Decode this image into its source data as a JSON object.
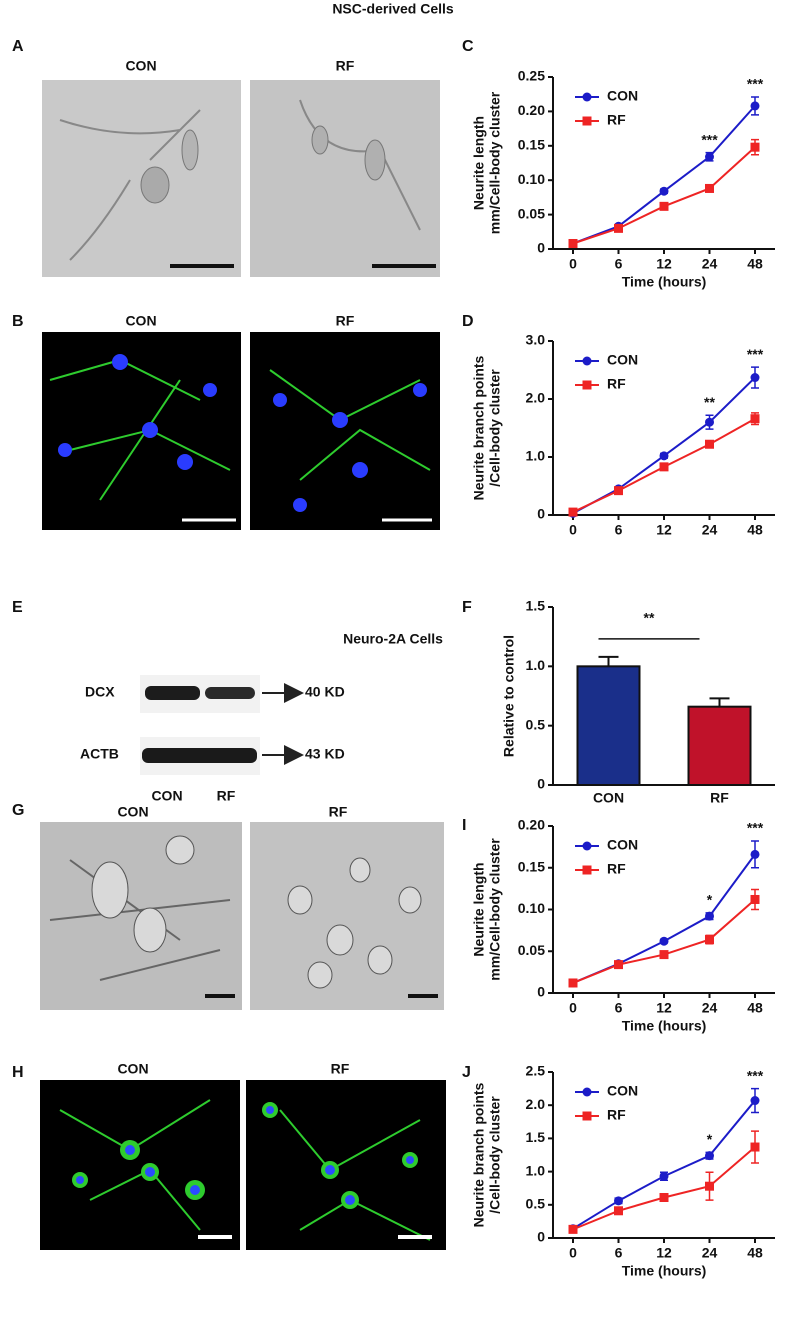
{
  "headings": [
    "NSC-derived Cells",
    "Neuro-2A Cells"
  ],
  "image_panels": [
    {
      "panel": "A",
      "labels": [
        "CON",
        "RF"
      ]
    },
    {
      "panel": "B",
      "labels": [
        "CON",
        "RF"
      ]
    },
    {
      "panel": "G",
      "labels": [
        "CON",
        "RF"
      ]
    },
    {
      "panel": "H",
      "labels": [
        "CON",
        "RF"
      ]
    }
  ],
  "blot": {
    "panel": "E",
    "rows": [
      "DCX",
      "ACTB"
    ],
    "sizes": [
      "40 KD",
      "43 KD"
    ],
    "lanes": [
      "CON",
      "RF"
    ]
  },
  "chart_data": [
    {
      "type": "line",
      "panel": "C",
      "ylabel": [
        "Neurite length",
        "mm/Cell-body cluster"
      ],
      "xlabel": "Time (hours)",
      "categories": [
        "0",
        "6",
        "12",
        "24",
        "48"
      ],
      "legend": "upper left",
      "series": [
        {
          "name": "CON",
          "color": "#1c1cc8",
          "values": [
            0.008,
            0.033,
            0.084,
            0.134,
            0.208
          ],
          "errors": [
            0.001,
            0.002,
            0.003,
            0.006,
            0.013
          ]
        },
        {
          "name": "RF",
          "color": "#ee2424",
          "values": [
            0.008,
            0.03,
            0.062,
            0.088,
            0.148
          ],
          "errors": [
            0.001,
            0.002,
            0.003,
            0.004,
            0.011
          ]
        }
      ],
      "annotations": [
        null,
        null,
        null,
        "***",
        "***"
      ],
      "ylim": [
        0,
        0.25
      ],
      "yticks": [
        0,
        0.05,
        {
          "value": 0.1,
          "label": "0.10"
        },
        0.15,
        {
          "value": 0.2,
          "label": "0.20"
        },
        0.25
      ]
    },
    {
      "type": "line",
      "panel": "D",
      "ylabel": [
        "Neurite branch points",
        "/Cell-body cluster"
      ],
      "xlabel": null,
      "categories": [
        "0",
        "6",
        "12",
        "24",
        "48"
      ],
      "legend": "upper left",
      "series": [
        {
          "name": "CON",
          "color": "#1c1cc8",
          "values": [
            0.03,
            0.45,
            1.02,
            1.6,
            2.37
          ],
          "errors": [
            0.02,
            0.03,
            0.04,
            0.12,
            0.18
          ]
        },
        {
          "name": "RF",
          "color": "#ee2424",
          "values": [
            0.05,
            0.42,
            0.83,
            1.22,
            1.66
          ],
          "errors": [
            0.02,
            0.03,
            0.04,
            0.05,
            0.1
          ]
        }
      ],
      "annotations": [
        null,
        null,
        null,
        "**",
        "***"
      ],
      "ylim": [
        0,
        3
      ],
      "yticks": [
        0,
        {
          "value": 1,
          "label": "1.0"
        },
        {
          "value": 2,
          "label": "2.0"
        },
        {
          "value": 3,
          "label": "3.0"
        }
      ]
    },
    {
      "type": "bar",
      "panel": "F",
      "ylabel": [
        "Relative to control"
      ],
      "xlabel": null,
      "categories": [
        "CON",
        "RF"
      ],
      "colors": [
        "#1a2f8a",
        "#c0122a"
      ],
      "values": [
        1.0,
        0.66
      ],
      "errors": [
        0.08,
        0.07
      ],
      "significance": "**",
      "ylim": [
        0,
        1.5
      ],
      "yticks": [
        0,
        0.5,
        {
          "value": 1,
          "label": "1.0"
        },
        1.5
      ]
    },
    {
      "type": "line",
      "panel": "I",
      "ylabel": [
        "Neurite length",
        "mm/Cell-body cluster"
      ],
      "xlabel": "Time (hours)",
      "categories": [
        "0",
        "6",
        "12",
        "24",
        "48"
      ],
      "legend": "upper left",
      "series": [
        {
          "name": "CON",
          "color": "#1c1cc8",
          "values": [
            0.012,
            0.035,
            0.062,
            0.092,
            0.166
          ],
          "errors": [
            0.001,
            0.002,
            0.002,
            0.004,
            0.016
          ]
        },
        {
          "name": "RF",
          "color": "#ee2424",
          "values": [
            0.012,
            0.034,
            0.046,
            0.064,
            0.112
          ],
          "errors": [
            0.001,
            0.002,
            0.003,
            0.005,
            0.012
          ]
        }
      ],
      "annotations": [
        null,
        null,
        null,
        "*",
        "***"
      ],
      "ylim": [
        0,
        0.2
      ],
      "yticks": [
        0,
        0.05,
        {
          "value": 0.1,
          "label": "0.10"
        },
        0.15,
        {
          "value": 0.2,
          "label": "0.20"
        }
      ]
    },
    {
      "type": "line",
      "panel": "J",
      "ylabel": [
        "Neurite branch points",
        "/Cell-body cluster"
      ],
      "xlabel": "Time (hours)",
      "categories": [
        "0",
        "6",
        "12",
        "24",
        "48"
      ],
      "legend": "upper left",
      "series": [
        {
          "name": "CON",
          "color": "#1c1cc8",
          "values": [
            0.14,
            0.56,
            0.93,
            1.24,
            2.07
          ],
          "errors": [
            0.02,
            0.04,
            0.06,
            0.05,
            0.18
          ]
        },
        {
          "name": "RF",
          "color": "#ee2424",
          "values": [
            0.13,
            0.41,
            0.61,
            0.78,
            1.37
          ],
          "errors": [
            0.02,
            0.03,
            0.04,
            0.21,
            0.24
          ]
        }
      ],
      "annotations": [
        null,
        null,
        null,
        "*",
        "***"
      ],
      "ylim": [
        0,
        2.5
      ],
      "yticks": [
        0,
        0.5,
        {
          "value": 1,
          "label": "1.0"
        },
        1.5,
        {
          "value": 2,
          "label": "2.0"
        },
        2.5
      ]
    }
  ]
}
